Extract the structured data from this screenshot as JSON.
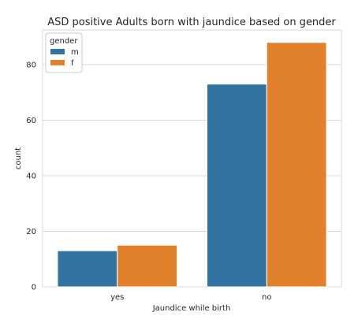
{
  "chart_data": {
    "type": "bar",
    "title": "ASD positive Adults born with jaundice based on gender",
    "xlabel": "Jaundice while birth",
    "ylabel": "count",
    "categories": [
      "yes",
      "no"
    ],
    "series": [
      {
        "name": "m",
        "values": [
          13,
          73
        ],
        "color": "#3274a1"
      },
      {
        "name": "f",
        "values": [
          15,
          88
        ],
        "color": "#e1812c"
      }
    ],
    "ylim": [
      0,
      92.5
    ],
    "yticks": [
      0,
      20,
      40,
      60,
      80
    ],
    "grid": true,
    "legend": {
      "title": "gender",
      "position": "top-left"
    }
  }
}
